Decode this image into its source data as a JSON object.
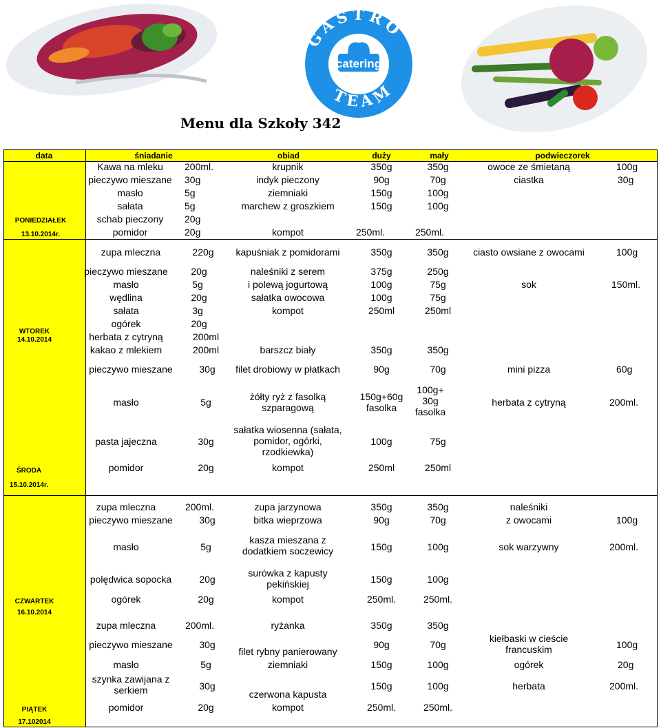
{
  "title": "Menu dla Szkoły 342",
  "logo": {
    "top": "GASTRO",
    "middle": "catering",
    "bottom": "TEAM"
  },
  "header": {
    "data": "data",
    "sniadanie": "śniadanie",
    "obiad": "obiad",
    "duzy": "duży",
    "maly": "mały",
    "podwieczorek": "podwieczorek"
  },
  "days": {
    "mon": {
      "name": "PONIEDZIAŁEK",
      "date": "13.10.2014r."
    },
    "tue": {
      "name": "WTOREK",
      "date": "14.10.2014"
    },
    "wed": {
      "name": "ŚRODA",
      "date": "15.10.2014r."
    },
    "thu": {
      "name": "CZWARTEK",
      "date": "16.10.2014"
    },
    "fri": {
      "name": "PIĄTEK",
      "date": "17.102014"
    }
  },
  "mon": {
    "b": [
      [
        "Kawa na mleku",
        "200ml."
      ],
      [
        "pieczywo mieszane",
        "30g"
      ],
      [
        "masło",
        "5g"
      ],
      [
        "sałata",
        "5g"
      ],
      [
        "schab pieczony",
        "20g"
      ],
      [
        "pomidor",
        "20g"
      ]
    ],
    "o": [
      [
        "krupnik",
        "350g",
        "350g"
      ],
      [
        "indyk pieczony",
        "90g",
        "70g"
      ],
      [
        "ziemniaki",
        "150g",
        "100g"
      ],
      [
        "marchew z groszkiem",
        "150g",
        "100g"
      ],
      [
        "kompot",
        "250ml.",
        "250ml."
      ]
    ],
    "s": [
      [
        "owoce ze śmietaną",
        "100g"
      ],
      [
        "ciastka",
        "30g"
      ]
    ]
  },
  "tue": {
    "r0": [
      "zupa mleczna",
      "220g",
      "kapuśniak z pomidorami",
      "350g",
      "350g",
      "ciasto owsiane z owocami",
      "100g"
    ],
    "b": [
      [
        "pieczywo mieszane",
        "20g"
      ],
      [
        "masło",
        "5g"
      ],
      [
        "wędlina",
        "20g"
      ],
      [
        "sałata",
        "3g"
      ],
      [
        "ogórek",
        "20g"
      ],
      [
        "herbata z cytryną",
        "200ml"
      ],
      [
        "kakao z mlekiem",
        "200ml"
      ]
    ],
    "o": [
      [
        "naleśniki z serem",
        "375g",
        "250g"
      ],
      [
        "i polewą jogurtową",
        "100g",
        "75g"
      ],
      [
        "sałatka owocowa",
        "100g",
        "75g"
      ],
      [
        "kompot",
        "250ml",
        "250ml"
      ],
      [
        "barszcz biały",
        "350g",
        "350g"
      ]
    ],
    "s": [
      "sok",
      "150ml."
    ]
  },
  "wed": {
    "r0": [
      "pieczywo mieszane",
      "30g",
      "filet drobiowy w płatkach",
      "90g",
      "70g",
      "mini pizza",
      "60g"
    ],
    "r1": [
      "masło",
      "5g",
      "żółty ryż z fasolką szparagową",
      "150g+60g fasolka",
      "100g+ 30g fasolka",
      "herbata z cytryną",
      "200ml."
    ],
    "r2": [
      "pasta jajeczna",
      "30g",
      "sałatka wiosenna (sałata, pomidor, ogórki, rzodkiewka)",
      "100g",
      "75g"
    ],
    "r3": [
      "pomidor",
      "20g",
      "kompot",
      "250ml",
      "250ml"
    ]
  },
  "thu": {
    "r0": [
      "zupa mleczna",
      "200ml.",
      "zupa jarzynowa",
      "350g",
      "350g",
      "naleśniki"
    ],
    "r1": [
      "pieczywo mieszane",
      "30g",
      "bitka wieprzowa",
      "90g",
      "70g",
      "z owocami",
      "100g"
    ],
    "r2": [
      "masło",
      "5g",
      "kasza mieszana z dodatkiem soczewicy",
      "150g",
      "100g",
      "sok warzywny",
      "200ml."
    ],
    "r3": [
      "polędwica sopocka",
      "20g",
      "surówka z kapusty pekińskiej",
      "150g",
      "100g"
    ],
    "r4": [
      "ogórek",
      "20g",
      "kompot",
      "250ml.",
      "250ml."
    ]
  },
  "fri": {
    "r0": [
      "zupa mleczna",
      "200ml.",
      "ryżanka",
      "350g",
      "350g"
    ],
    "r1": [
      "pieczywo mieszane",
      "30g",
      "filet rybny panierowany",
      "90g",
      "70g",
      "kiełbaski w cieście francuskim",
      "100g"
    ],
    "r2": [
      "masło",
      "5g",
      "ziemniaki",
      "150g",
      "100g",
      "ogórek",
      "20g"
    ],
    "r3": [
      "szynka zawijana z serkiem",
      "30g",
      "czerwona kapusta",
      "150g",
      "100g",
      "herbata",
      "200ml."
    ],
    "r4": [
      "pomidor",
      "20g",
      "kompot",
      "250ml.",
      "250ml."
    ]
  },
  "colors": {
    "header": "#ffff00",
    "logo_blue": "#1e90e6"
  }
}
